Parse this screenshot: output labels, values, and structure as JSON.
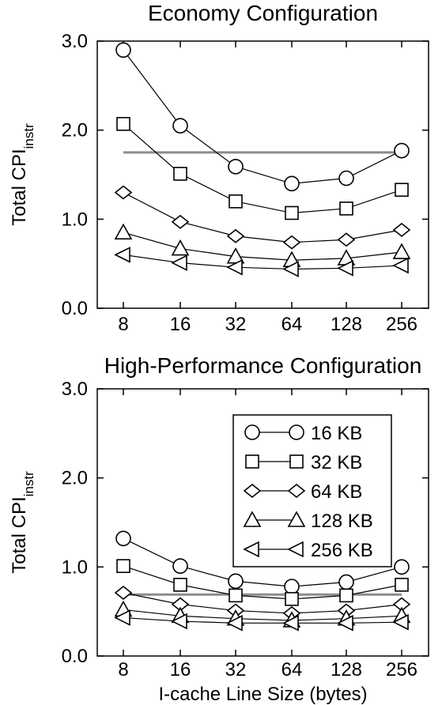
{
  "chart_data": [
    {
      "type": "line",
      "title": "Economy Configuration",
      "xlabel": "",
      "ylabel": "Total CPI",
      "ylabel_sub": "instr",
      "categories": [
        "8",
        "16",
        "32",
        "64",
        "128",
        "256"
      ],
      "ylim": [
        0,
        3
      ],
      "yticks": [
        "0.0",
        "1.0",
        "2.0",
        "3.0"
      ],
      "reference_line": 1.75,
      "series": [
        {
          "name": "16 KB",
          "marker": "circle",
          "values": [
            2.9,
            2.05,
            1.59,
            1.4,
            1.46,
            1.77
          ]
        },
        {
          "name": "32 KB",
          "marker": "square",
          "values": [
            2.07,
            1.51,
            1.2,
            1.07,
            1.12,
            1.33
          ]
        },
        {
          "name": "64 KB",
          "marker": "diamond",
          "values": [
            1.3,
            0.97,
            0.81,
            0.74,
            0.77,
            0.88
          ]
        },
        {
          "name": "128 KB",
          "marker": "triangle-up",
          "values": [
            0.85,
            0.67,
            0.58,
            0.54,
            0.56,
            0.63
          ]
        },
        {
          "name": "256 KB",
          "marker": "triangle-left",
          "values": [
            0.6,
            0.51,
            0.46,
            0.44,
            0.45,
            0.48
          ]
        }
      ]
    },
    {
      "type": "line",
      "title": "High-Performance Configuration",
      "xlabel": "I-cache Line Size (bytes)",
      "ylabel": "Total CPI",
      "ylabel_sub": "instr",
      "categories": [
        "8",
        "16",
        "32",
        "64",
        "128",
        "256"
      ],
      "ylim": [
        0,
        3
      ],
      "yticks": [
        "0.0",
        "1.0",
        "2.0",
        "3.0"
      ],
      "reference_line": 0.69,
      "legend_position": "top-right",
      "series": [
        {
          "name": "16 KB",
          "marker": "circle",
          "values": [
            1.32,
            1.01,
            0.84,
            0.78,
            0.83,
            1.0
          ]
        },
        {
          "name": "32 KB",
          "marker": "square",
          "values": [
            1.01,
            0.8,
            0.68,
            0.64,
            0.68,
            0.8
          ]
        },
        {
          "name": "64 KB",
          "marker": "diamond",
          "values": [
            0.71,
            0.58,
            0.51,
            0.48,
            0.51,
            0.58
          ]
        },
        {
          "name": "128 KB",
          "marker": "triangle-up",
          "values": [
            0.52,
            0.45,
            0.42,
            0.4,
            0.42,
            0.45
          ]
        },
        {
          "name": "256 KB",
          "marker": "triangle-left",
          "values": [
            0.43,
            0.39,
            0.37,
            0.37,
            0.37,
            0.38
          ]
        }
      ]
    }
  ],
  "colors": {
    "axis": "#000000",
    "series": "#000000",
    "reference_line": "#8c8c8c"
  }
}
